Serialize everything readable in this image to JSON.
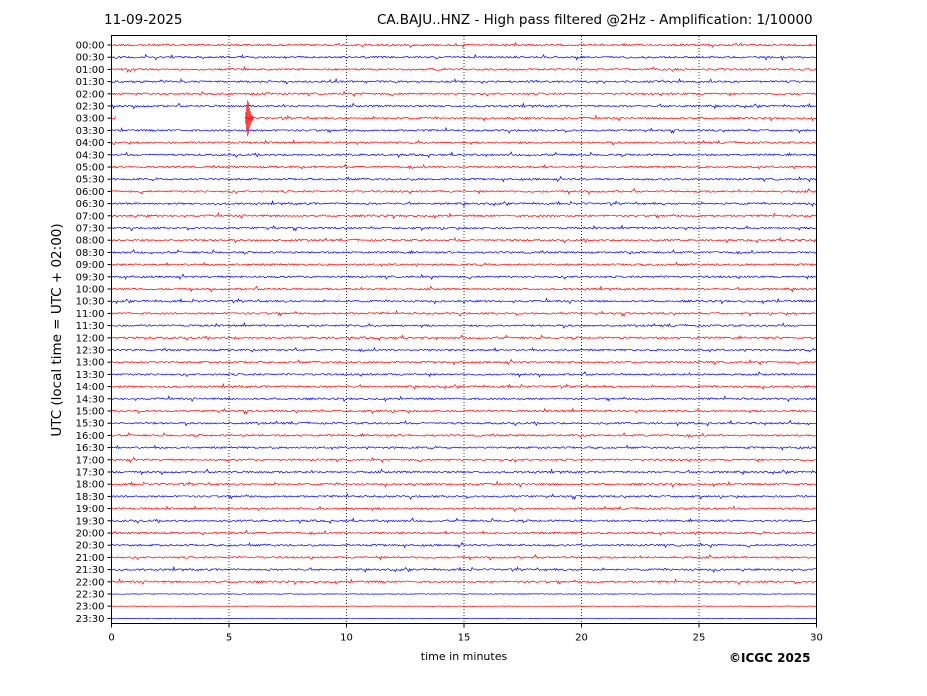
{
  "header": {
    "date": "11-09-2025",
    "title": "CA.BAJU..HNZ - High pass filtered @2Hz - Amplification: 1/10000"
  },
  "footer": {
    "copyright": "©ICGC 2025"
  },
  "colors": {
    "red_trace": "#ff0000",
    "blue_trace": "#0000ff",
    "grid": "#000000"
  },
  "chart_data": {
    "type": "line",
    "subtype": "helicorder",
    "xlabel": "time in minutes",
    "ylabel": "UTC (local time = UTC + 02:00)",
    "xlim": [
      0,
      30
    ],
    "x_ticks": [
      0,
      5,
      10,
      15,
      20,
      25,
      30
    ],
    "vertical_gridlines": [
      5,
      10,
      15,
      20,
      25
    ],
    "grid_style": "dotted",
    "trace_color_pattern": [
      "red",
      "blue"
    ],
    "rows": [
      "00:00",
      "00:30",
      "01:00",
      "01:30",
      "02:00",
      "02:30",
      "03:00",
      "03:30",
      "04:00",
      "04:30",
      "05:00",
      "05:30",
      "06:00",
      "06:30",
      "07:00",
      "07:30",
      "08:00",
      "08:30",
      "09:00",
      "09:30",
      "10:00",
      "10:30",
      "11:00",
      "11:30",
      "12:00",
      "12:30",
      "13:00",
      "13:30",
      "14:00",
      "14:30",
      "15:00",
      "15:30",
      "16:00",
      "16:30",
      "17:00",
      "17:30",
      "18:00",
      "18:30",
      "19:00",
      "19:30",
      "20:00",
      "20:30",
      "21:00",
      "21:30",
      "22:00",
      "22:30",
      "23:00",
      "23:30"
    ],
    "events": [
      {
        "row": "03:00",
        "minute": 5.8,
        "description_amplitude": "large"
      }
    ],
    "data_gap": {
      "row": "03:00",
      "from_minute": 0.2,
      "to_minute": 5.6
    }
  }
}
